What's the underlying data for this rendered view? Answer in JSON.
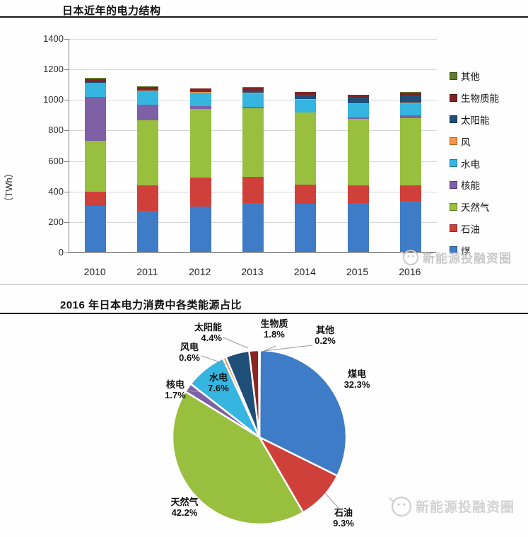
{
  "header": {
    "bar_title": "日本近年的电力结构",
    "pie_title": "2016 年日本电力消费中各类能源占比"
  },
  "watermark": {
    "text": "新能源投融资圈"
  },
  "chart_data": [
    {
      "type": "bar",
      "stacked": true,
      "title": "日本近年的电力结构",
      "xlabel": "",
      "ylabel": "（TWh）",
      "ylim": [
        0,
        1400
      ],
      "ytick_step": 200,
      "grid": true,
      "legend_position": "right",
      "legend_order": "top-to-bottom is reverse of stack order",
      "categories": [
        "2010",
        "2011",
        "2012",
        "2013",
        "2014",
        "2015",
        "2016"
      ],
      "series": [
        {
          "name": "煤",
          "color": "#3E7CC7",
          "values": [
            300,
            268,
            298,
            320,
            317,
            322,
            332
          ]
        },
        {
          "name": "石油",
          "color": "#D0403A",
          "values": [
            93,
            168,
            188,
            172,
            121,
            116,
            105
          ]
        },
        {
          "name": "天然气",
          "color": "#99BF3F",
          "values": [
            334,
            425,
            452,
            447,
            476,
            432,
            440
          ]
        },
        {
          "name": "核能",
          "color": "#7D60A5",
          "values": [
            288,
            102,
            16,
            9,
            0,
            9,
            18
          ]
        },
        {
          "name": "水电",
          "color": "#35B5DF",
          "values": [
            91,
            91,
            88,
            90,
            83,
            91,
            78
          ]
        },
        {
          "name": "风",
          "color": "#F79646",
          "values": [
            4,
            5,
            5,
            5,
            5,
            5,
            6
          ]
        },
        {
          "name": "太阳能",
          "color": "#1F4E79",
          "values": [
            4,
            5,
            7,
            14,
            26,
            35,
            46
          ]
        },
        {
          "name": "生物质能",
          "color": "#7E2523",
          "values": [
            16,
            16,
            16,
            18,
            18,
            18,
            20
          ]
        },
        {
          "name": "其他",
          "color": "#5E7A2B",
          "values": [
            12,
            6,
            3,
            3,
            3,
            3,
            2
          ]
        }
      ]
    },
    {
      "type": "pie",
      "title": "2016 年日本电力消费中各类能源占比",
      "start_angle_deg": 0,
      "direction": "clockwise-from-top",
      "slices": [
        {
          "name": "煤电",
          "pct": 32.3,
          "color": "#3E7CC7"
        },
        {
          "name": "石油",
          "pct": 9.3,
          "color": "#D0403A"
        },
        {
          "name": "天然气",
          "pct": 42.2,
          "color": "#99BF3F"
        },
        {
          "name": "核电",
          "pct": 1.7,
          "color": "#7D60A5"
        },
        {
          "name": "水电",
          "pct": 7.6,
          "color": "#35B5DF"
        },
        {
          "name": "风电",
          "pct": 0.6,
          "color": "#F08C3C"
        },
        {
          "name": "太阳能",
          "pct": 4.4,
          "color": "#1F4E79"
        },
        {
          "name": "生物质",
          "pct": 1.8,
          "color": "#8B2623"
        },
        {
          "name": "其他",
          "pct": 0.2,
          "color": "#ECECEC"
        }
      ]
    }
  ]
}
